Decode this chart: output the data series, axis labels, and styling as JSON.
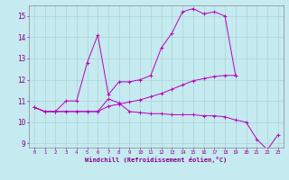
{
  "xlabel": "Windchill (Refroidissement éolien,°C)",
  "background_color": "#c5eaf0",
  "line_color": "#bb00bb",
  "grid_color": "#aad4d8",
  "x": [
    0,
    1,
    2,
    3,
    4,
    5,
    6,
    7,
    8,
    9,
    10,
    11,
    12,
    13,
    14,
    15,
    16,
    17,
    18,
    19,
    20,
    21,
    22,
    23
  ],
  "line1": [
    10.7,
    10.5,
    10.5,
    11.0,
    11.0,
    12.8,
    14.1,
    11.3,
    11.9,
    11.9,
    12.0,
    12.2,
    13.5,
    14.2,
    15.2,
    15.35,
    15.1,
    15.2,
    15.0,
    12.2,
    null,
    null,
    null,
    null
  ],
  "line2": [
    10.7,
    10.5,
    10.5,
    10.5,
    10.5,
    10.5,
    10.5,
    11.1,
    10.9,
    10.5,
    10.45,
    10.4,
    10.4,
    10.35,
    10.35,
    10.35,
    10.3,
    10.3,
    10.25,
    10.1,
    10.0,
    9.2,
    8.7,
    9.4
  ],
  "line3": [
    10.7,
    10.5,
    10.5,
    10.5,
    10.5,
    10.5,
    10.5,
    10.75,
    10.85,
    10.95,
    11.05,
    11.2,
    11.35,
    11.55,
    11.75,
    11.95,
    12.05,
    12.15,
    12.2,
    12.2,
    null,
    null,
    null,
    null
  ],
  "ylim": [
    8.8,
    15.5
  ],
  "xlim": [
    -0.5,
    23.5
  ],
  "yticks": [
    9,
    10,
    11,
    12,
    13,
    14,
    15
  ],
  "xticks": [
    0,
    1,
    2,
    3,
    4,
    5,
    6,
    7,
    8,
    9,
    10,
    11,
    12,
    13,
    14,
    15,
    16,
    17,
    18,
    19,
    20,
    21,
    22,
    23
  ]
}
